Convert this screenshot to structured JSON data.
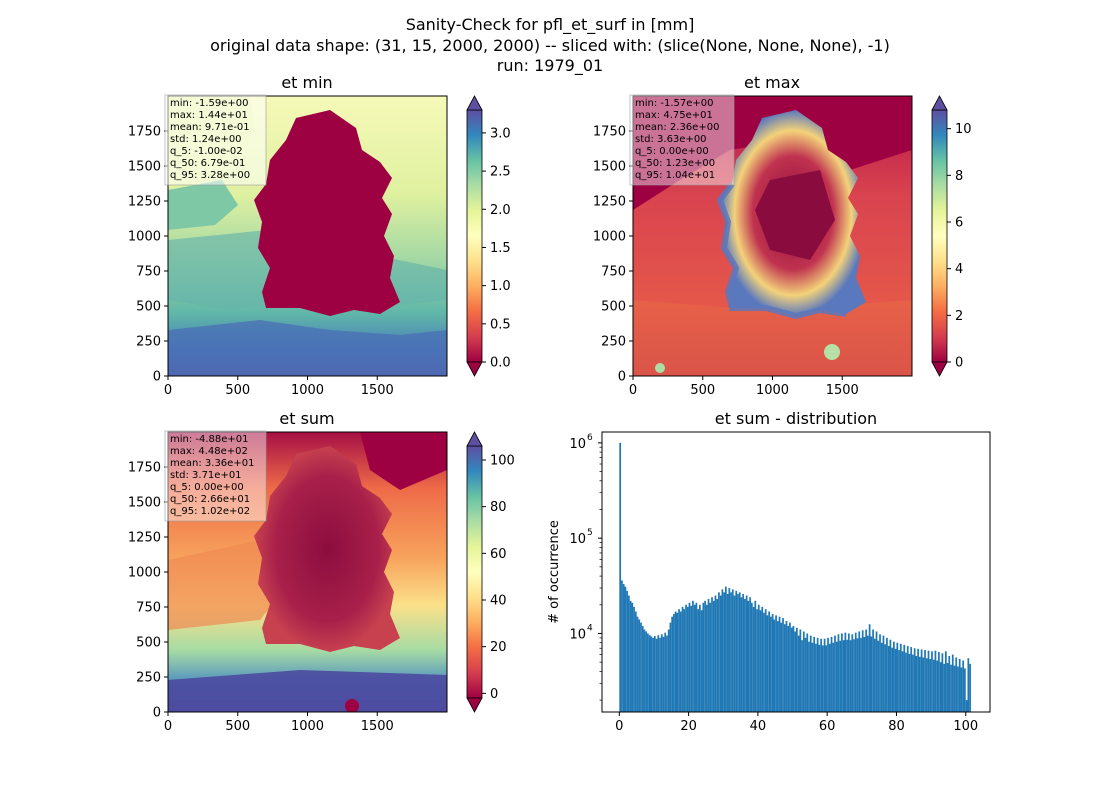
{
  "figure": {
    "title_lines": [
      "Sanity-Check for pfl_et_surf in [mm]",
      "original data shape: (31, 15, 2000, 2000) -- sliced with: (slice(None, None, None), -1)",
      "run: 1979_01"
    ]
  },
  "panels": [
    {
      "key": "et_min",
      "title": "et min",
      "xticks": [
        "0",
        "500",
        "1000",
        "1500"
      ],
      "yticks": [
        "0",
        "250",
        "500",
        "750",
        "1000",
        "1250",
        "1500",
        "1750"
      ],
      "colorbar": {
        "ticks": [
          "0.0",
          "0.5",
          "1.0",
          "1.5",
          "2.0",
          "2.5",
          "3.0"
        ],
        "min": 0,
        "max": 3.3,
        "colormap": "Spectral"
      },
      "stats": [
        "min: -1.59e+00",
        "max: 1.44e+01",
        "mean: 9.71e-01",
        "std: 1.24e+00",
        "q_5: -1.00e-02",
        "q_50: 6.79e-01",
        "q_95: 3.28e+00"
      ]
    },
    {
      "key": "et_max",
      "title": "et max",
      "xticks": [
        "0",
        "500",
        "1000",
        "1500"
      ],
      "yticks": [
        "0",
        "250",
        "500",
        "750",
        "1000",
        "1250",
        "1500",
        "1750"
      ],
      "colorbar": {
        "ticks": [
          "0",
          "2",
          "4",
          "6",
          "8",
          "10"
        ],
        "min": 0,
        "max": 10.8,
        "colormap": "Spectral"
      },
      "stats": [
        "min: -1.57e+00",
        "max: 4.75e+01",
        "mean: 2.36e+00",
        "std: 3.63e+00",
        "q_5: 0.00e+00",
        "q_50: 1.23e+00",
        "q_95: 1.04e+01"
      ]
    },
    {
      "key": "et_sum",
      "title": "et sum",
      "xticks": [
        "0",
        "500",
        "1000",
        "1500"
      ],
      "yticks": [
        "0",
        "250",
        "500",
        "750",
        "1000",
        "1250",
        "1500",
        "1750"
      ],
      "colorbar": {
        "ticks": [
          "0",
          "20",
          "40",
          "60",
          "80",
          "100"
        ],
        "min": -2,
        "max": 106,
        "colormap": "Spectral"
      },
      "stats": [
        "min: -4.88e+01",
        "max: 4.48e+02",
        "mean: 3.36e+01",
        "std: 3.71e+01",
        "q_5: 0.00e+00",
        "q_50: 2.66e+01",
        "q_95: 1.02e+02"
      ]
    }
  ],
  "histogram": {
    "title": "et sum - distribution",
    "ylabel": "# of occurrence",
    "xticks": [
      "0",
      "20",
      "40",
      "60",
      "80",
      "100"
    ],
    "yticks": [
      {
        "base": "10",
        "exp": "4"
      },
      {
        "base": "10",
        "exp": "5"
      },
      {
        "base": "10",
        "exp": "6"
      }
    ],
    "bar_color": "#1f77b4"
  },
  "chart_data": [
    {
      "type": "heatmap",
      "title": "et min",
      "xlim": [
        0,
        2000
      ],
      "ylim": [
        0,
        2000
      ],
      "colorbar_range": [
        0,
        3.3
      ],
      "colormap": "Spectral"
    },
    {
      "type": "heatmap",
      "title": "et max",
      "xlim": [
        0,
        2000
      ],
      "ylim": [
        0,
        2000
      ],
      "colorbar_range": [
        0,
        10.8
      ],
      "colormap": "Spectral"
    },
    {
      "type": "heatmap",
      "title": "et sum",
      "xlim": [
        0,
        2000
      ],
      "ylim": [
        0,
        2000
      ],
      "colorbar_range": [
        -2,
        106
      ],
      "colormap": "Spectral"
    },
    {
      "type": "bar",
      "title": "et sum - distribution",
      "ylabel": "# of occurrence",
      "yscale": "log",
      "xlim": [
        -5,
        107
      ],
      "ylim": [
        1500,
        1300000
      ],
      "bin_width": 0.5,
      "bins": [
        {
          "x": 0,
          "y": 1000000
        },
        {
          "x": 0.5,
          "y": 36000
        },
        {
          "x": 1,
          "y": 33000
        },
        {
          "x": 1.5,
          "y": 31000
        },
        {
          "x": 2,
          "y": 28000
        },
        {
          "x": 2.5,
          "y": 25000
        },
        {
          "x": 3,
          "y": 22000
        },
        {
          "x": 3.5,
          "y": 21000
        },
        {
          "x": 4,
          "y": 19000
        },
        {
          "x": 4.5,
          "y": 17000
        },
        {
          "x": 5,
          "y": 15000
        },
        {
          "x": 5.5,
          "y": 14000
        },
        {
          "x": 6,
          "y": 13000
        },
        {
          "x": 6.5,
          "y": 12000
        },
        {
          "x": 7,
          "y": 11000
        },
        {
          "x": 7.5,
          "y": 10500
        },
        {
          "x": 8,
          "y": 10000
        },
        {
          "x": 8.5,
          "y": 9600
        },
        {
          "x": 9,
          "y": 9300
        },
        {
          "x": 9.5,
          "y": 9000
        },
        {
          "x": 10,
          "y": 9400
        },
        {
          "x": 10.5,
          "y": 8800
        },
        {
          "x": 11,
          "y": 9600
        },
        {
          "x": 11.5,
          "y": 9000
        },
        {
          "x": 12,
          "y": 9800
        },
        {
          "x": 12.5,
          "y": 9200
        },
        {
          "x": 13,
          "y": 10200
        },
        {
          "x": 13.5,
          "y": 9500
        },
        {
          "x": 14,
          "y": 11000
        },
        {
          "x": 14.5,
          "y": 13000
        },
        {
          "x": 15,
          "y": 15000
        },
        {
          "x": 15.5,
          "y": 16000
        },
        {
          "x": 16,
          "y": 17000
        },
        {
          "x": 16.5,
          "y": 16500
        },
        {
          "x": 17,
          "y": 18000
        },
        {
          "x": 17.5,
          "y": 17000
        },
        {
          "x": 18,
          "y": 19000
        },
        {
          "x": 18.5,
          "y": 18000
        },
        {
          "x": 19,
          "y": 20000
        },
        {
          "x": 19.5,
          "y": 19000
        },
        {
          "x": 20,
          "y": 21000
        },
        {
          "x": 20.5,
          "y": 19500
        },
        {
          "x": 21,
          "y": 22000
        },
        {
          "x": 21.5,
          "y": 20000
        },
        {
          "x": 22,
          "y": 21000
        },
        {
          "x": 22.5,
          "y": 18000
        },
        {
          "x": 23,
          "y": 20000
        },
        {
          "x": 23.5,
          "y": 17500
        },
        {
          "x": 24,
          "y": 21000
        },
        {
          "x": 24.5,
          "y": 22000
        },
        {
          "x": 25,
          "y": 20000
        },
        {
          "x": 25.5,
          "y": 23000
        },
        {
          "x": 26,
          "y": 21000
        },
        {
          "x": 26.5,
          "y": 24000
        },
        {
          "x": 27,
          "y": 22000
        },
        {
          "x": 27.5,
          "y": 25000
        },
        {
          "x": 28,
          "y": 23000
        },
        {
          "x": 28.5,
          "y": 27000
        },
        {
          "x": 29,
          "y": 25000
        },
        {
          "x": 29.5,
          "y": 29000
        },
        {
          "x": 30,
          "y": 27000
        },
        {
          "x": 30.5,
          "y": 31000
        },
        {
          "x": 31,
          "y": 26000
        },
        {
          "x": 31.5,
          "y": 30000
        },
        {
          "x": 32,
          "y": 27000
        },
        {
          "x": 32.5,
          "y": 29000
        },
        {
          "x": 33,
          "y": 25000
        },
        {
          "x": 33.5,
          "y": 28000
        },
        {
          "x": 34,
          "y": 26000
        },
        {
          "x": 34.5,
          "y": 27000
        },
        {
          "x": 35,
          "y": 24000
        },
        {
          "x": 35.5,
          "y": 26000
        },
        {
          "x": 36,
          "y": 23000
        },
        {
          "x": 36.5,
          "y": 25000
        },
        {
          "x": 37,
          "y": 22000
        },
        {
          "x": 37.5,
          "y": 24000
        },
        {
          "x": 38,
          "y": 21000
        },
        {
          "x": 38.5,
          "y": 19000
        },
        {
          "x": 39,
          "y": 22000
        },
        {
          "x": 39.5,
          "y": 18000
        },
        {
          "x": 40,
          "y": 20000
        },
        {
          "x": 40.5,
          "y": 17500
        },
        {
          "x": 41,
          "y": 19000
        },
        {
          "x": 41.5,
          "y": 16500
        },
        {
          "x": 42,
          "y": 18000
        },
        {
          "x": 42.5,
          "y": 15500
        },
        {
          "x": 43,
          "y": 17000
        },
        {
          "x": 43.5,
          "y": 15000
        },
        {
          "x": 44,
          "y": 16000
        },
        {
          "x": 44.5,
          "y": 14000
        },
        {
          "x": 45,
          "y": 15500
        },
        {
          "x": 45.5,
          "y": 13500
        },
        {
          "x": 46,
          "y": 15000
        },
        {
          "x": 46.5,
          "y": 13000
        },
        {
          "x": 47,
          "y": 14500
        },
        {
          "x": 47.5,
          "y": 12500
        },
        {
          "x": 48,
          "y": 13500
        },
        {
          "x": 48.5,
          "y": 12000
        },
        {
          "x": 49,
          "y": 13000
        },
        {
          "x": 49.5,
          "y": 11500
        },
        {
          "x": 50,
          "y": 12000
        },
        {
          "x": 50.5,
          "y": 10500
        },
        {
          "x": 51,
          "y": 11500
        },
        {
          "x": 51.5,
          "y": 9500
        },
        {
          "x": 52,
          "y": 11000
        },
        {
          "x": 52.5,
          "y": 8500
        },
        {
          "x": 53,
          "y": 10500
        },
        {
          "x": 53.5,
          "y": 9000
        },
        {
          "x": 54,
          "y": 10000
        },
        {
          "x": 54.5,
          "y": 8200
        },
        {
          "x": 55,
          "y": 9500
        },
        {
          "x": 55.5,
          "y": 8000
        },
        {
          "x": 56,
          "y": 9200
        },
        {
          "x": 56.5,
          "y": 7800
        },
        {
          "x": 57,
          "y": 9000
        },
        {
          "x": 57.5,
          "y": 7600
        },
        {
          "x": 58,
          "y": 8800
        },
        {
          "x": 58.5,
          "y": 7500
        },
        {
          "x": 59,
          "y": 8800
        },
        {
          "x": 59.5,
          "y": 7500
        },
        {
          "x": 60,
          "y": 9000
        },
        {
          "x": 60.5,
          "y": 7800
        },
        {
          "x": 61,
          "y": 9200
        },
        {
          "x": 61.5,
          "y": 8000
        },
        {
          "x": 62,
          "y": 9500
        },
        {
          "x": 62.5,
          "y": 8200
        },
        {
          "x": 63,
          "y": 9800
        },
        {
          "x": 63.5,
          "y": 8400
        },
        {
          "x": 64,
          "y": 10000
        },
        {
          "x": 64.5,
          "y": 8500
        },
        {
          "x": 65,
          "y": 10200
        },
        {
          "x": 65.5,
          "y": 8600
        },
        {
          "x": 66,
          "y": 10000
        },
        {
          "x": 66.5,
          "y": 8500
        },
        {
          "x": 67,
          "y": 9800
        },
        {
          "x": 67.5,
          "y": 8700
        },
        {
          "x": 68,
          "y": 10200
        },
        {
          "x": 68.5,
          "y": 8900
        },
        {
          "x": 69,
          "y": 10500
        },
        {
          "x": 69.5,
          "y": 9000
        },
        {
          "x": 70,
          "y": 10800
        },
        {
          "x": 70.5,
          "y": 9200
        },
        {
          "x": 71,
          "y": 11000
        },
        {
          "x": 71.5,
          "y": 9500
        },
        {
          "x": 72,
          "y": 12500
        },
        {
          "x": 72.5,
          "y": 9300
        },
        {
          "x": 73,
          "y": 11000
        },
        {
          "x": 73.5,
          "y": 8800
        },
        {
          "x": 74,
          "y": 10500
        },
        {
          "x": 74.5,
          "y": 8400
        },
        {
          "x": 75,
          "y": 9800
        },
        {
          "x": 75.5,
          "y": 8000
        },
        {
          "x": 76,
          "y": 9500
        },
        {
          "x": 76.5,
          "y": 7700
        },
        {
          "x": 77,
          "y": 9000
        },
        {
          "x": 77.5,
          "y": 7400
        },
        {
          "x": 78,
          "y": 8600
        },
        {
          "x": 78.5,
          "y": 7100
        },
        {
          "x": 79,
          "y": 8200
        },
        {
          "x": 79.5,
          "y": 6900
        },
        {
          "x": 80,
          "y": 8000
        },
        {
          "x": 80.5,
          "y": 6700
        },
        {
          "x": 81,
          "y": 7800
        },
        {
          "x": 81.5,
          "y": 6500
        },
        {
          "x": 82,
          "y": 7600
        },
        {
          "x": 82.5,
          "y": 6300
        },
        {
          "x": 83,
          "y": 7400
        },
        {
          "x": 83.5,
          "y": 6100
        },
        {
          "x": 84,
          "y": 7200
        },
        {
          "x": 84.5,
          "y": 6000
        },
        {
          "x": 85,
          "y": 7000
        },
        {
          "x": 85.5,
          "y": 5800
        },
        {
          "x": 86,
          "y": 6900
        },
        {
          "x": 86.5,
          "y": 5700
        },
        {
          "x": 87,
          "y": 6800
        },
        {
          "x": 87.5,
          "y": 5600
        },
        {
          "x": 88,
          "y": 6700
        },
        {
          "x": 88.5,
          "y": 5500
        },
        {
          "x": 89,
          "y": 6600
        },
        {
          "x": 89.5,
          "y": 5400
        },
        {
          "x": 90,
          "y": 6500
        },
        {
          "x": 90.5,
          "y": 5300
        },
        {
          "x": 91,
          "y": 6600
        },
        {
          "x": 91.5,
          "y": 5200
        },
        {
          "x": 92,
          "y": 6400
        },
        {
          "x": 92.5,
          "y": 5000
        },
        {
          "x": 93,
          "y": 6200
        },
        {
          "x": 93.5,
          "y": 4800
        },
        {
          "x": 94,
          "y": 6500
        },
        {
          "x": 94.5,
          "y": 4900
        },
        {
          "x": 95,
          "y": 5800
        },
        {
          "x": 95.5,
          "y": 4700
        },
        {
          "x": 96,
          "y": 6000
        },
        {
          "x": 96.5,
          "y": 4600
        },
        {
          "x": 97,
          "y": 5600
        },
        {
          "x": 97.5,
          "y": 4500
        },
        {
          "x": 98,
          "y": 5400
        },
        {
          "x": 98.5,
          "y": 4400
        },
        {
          "x": 99,
          "y": 5200
        },
        {
          "x": 99.5,
          "y": 4300
        },
        {
          "x": 100,
          "y": 2000
        },
        {
          "x": 100.5,
          "y": 5500
        },
        {
          "x": 101,
          "y": 4800
        }
      ]
    }
  ]
}
